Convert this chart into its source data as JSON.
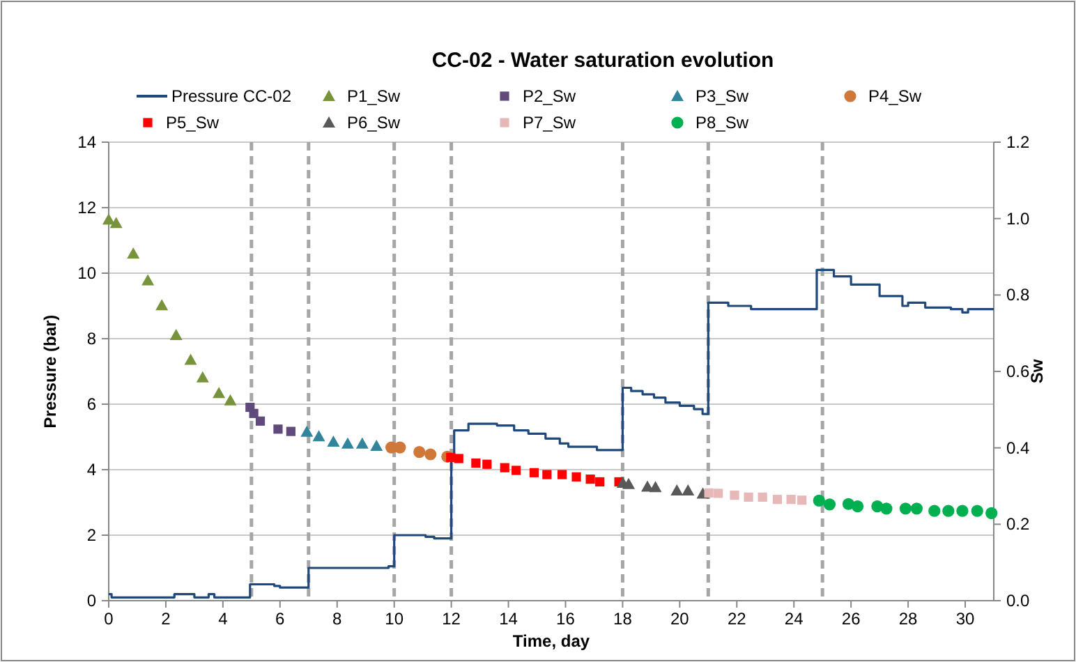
{
  "chart_data": {
    "type": "scatter",
    "title": "CC-02 - Water saturation evolution",
    "xlabel": "Time, day",
    "ylabel": "Pressure (bar)",
    "y2label": "Sw",
    "xlim": [
      0,
      31
    ],
    "xticks": [
      0,
      2,
      4,
      6,
      8,
      10,
      12,
      14,
      16,
      18,
      20,
      22,
      24,
      26,
      28,
      30
    ],
    "ylim": [
      0,
      14
    ],
    "yticks": [
      0,
      2,
      4,
      6,
      8,
      10,
      12,
      14
    ],
    "y2lim": [
      0,
      1.2
    ],
    "y2ticks": [
      {
        "value": 0,
        "label": "0.0"
      },
      {
        "value": 0.2,
        "label": "0.2"
      },
      {
        "value": 0.4,
        "label": "0.4"
      },
      {
        "value": 0.6,
        "label": "0.6"
      },
      {
        "value": 0.8,
        "label": "0.8"
      },
      {
        "value": 1.0,
        "label": "1.0"
      },
      {
        "value": 1.2,
        "label": "1.2"
      }
    ],
    "grid": "y",
    "legend": "top",
    "ref_lines": [
      {
        "axis": "x",
        "value": 5,
        "color": "#a6a6a6",
        "line_style": "dashed"
      },
      {
        "axis": "x",
        "value": 7,
        "color": "#a6a6a6",
        "line_style": "dashed"
      },
      {
        "axis": "x",
        "value": 10,
        "color": "#a6a6a6",
        "line_style": "dashed"
      },
      {
        "axis": "x",
        "value": 12,
        "color": "#a6a6a6",
        "line_style": "dashed"
      },
      {
        "axis": "x",
        "value": 18,
        "color": "#a6a6a6",
        "line_style": "dashed"
      },
      {
        "axis": "x",
        "value": 21,
        "color": "#a6a6a6",
        "line_style": "dashed"
      },
      {
        "axis": "x",
        "value": 25,
        "color": "#a6a6a6",
        "line_style": "dashed"
      }
    ],
    "series": [
      {
        "name": "Pressure CC-02",
        "type": "step",
        "color": "#1f497d",
        "x": [
          0,
          0.1,
          2.3,
          3.0,
          3.5,
          3.7,
          4.95,
          5.8,
          6.0,
          7.0,
          9.8,
          10.0,
          11.1,
          11.4,
          12.0,
          12.1,
          12.6,
          13.6,
          14.2,
          14.7,
          15.3,
          15.8,
          16.1,
          17.1,
          18.0,
          18.3,
          18.7,
          19.1,
          19.5,
          20.0,
          20.5,
          20.8,
          21.0,
          21.7,
          22.5,
          24.8,
          25.4,
          26.0,
          27.0,
          27.8,
          28.0,
          28.6,
          29.5,
          29.9,
          30.1,
          31
        ],
        "values": [
          0.2,
          0.1,
          0.2,
          0.1,
          0.2,
          0.1,
          0.5,
          0.45,
          0.4,
          1.0,
          1.05,
          2.0,
          1.95,
          1.9,
          4.4,
          5.2,
          5.4,
          5.35,
          5.2,
          5.1,
          4.95,
          4.8,
          4.7,
          4.6,
          6.5,
          6.4,
          6.3,
          6.2,
          6.05,
          5.95,
          5.85,
          5.7,
          9.1,
          9.0,
          8.9,
          10.1,
          9.9,
          9.65,
          9.3,
          9.0,
          9.1,
          8.95,
          8.9,
          8.8,
          8.9,
          8.9
        ]
      },
      {
        "name": "P1_Sw",
        "axis": "y2",
        "color": "#77933c",
        "marker": "triangle",
        "x": [
          0,
          0.26,
          0.86,
          1.37,
          1.86,
          2.36,
          2.87,
          3.29,
          3.86,
          4.26
        ],
        "values": [
          0.997,
          0.988,
          0.908,
          0.838,
          0.773,
          0.695,
          0.63,
          0.584,
          0.543,
          0.524
        ]
      },
      {
        "name": "P2_Sw",
        "axis": "y2",
        "color": "#604a7b",
        "marker": "square",
        "x": [
          4.95,
          5.08,
          5.31,
          5.93,
          6.38
        ],
        "values": [
          0.506,
          0.49,
          0.47,
          0.449,
          0.443
        ]
      },
      {
        "name": "P3_Sw",
        "axis": "y2",
        "color": "#31849b",
        "marker": "triangle",
        "x": [
          6.94,
          7.36,
          7.87,
          8.37,
          8.88,
          9.38
        ],
        "values": [
          0.442,
          0.43,
          0.416,
          0.411,
          0.411,
          0.405
        ]
      },
      {
        "name": "P4_Sw",
        "axis": "y2",
        "color": "#d0783a",
        "marker": "circle",
        "x": [
          9.9,
          10.2,
          10.88,
          11.27,
          11.86
        ],
        "values": [
          0.401,
          0.401,
          0.389,
          0.383,
          0.377
        ]
      },
      {
        "name": "P5_Sw",
        "axis": "y2",
        "color": "#ff0000",
        "marker": "square",
        "x": [
          11.98,
          12.26,
          12.86,
          13.25,
          13.87,
          14.27,
          14.9,
          15.35,
          15.88,
          16.38,
          16.87,
          17.2,
          17.87
        ],
        "values": [
          0.375,
          0.372,
          0.36,
          0.357,
          0.348,
          0.341,
          0.335,
          0.33,
          0.33,
          0.324,
          0.318,
          0.311,
          0.311
        ]
      },
      {
        "name": "P6_Sw",
        "axis": "y2",
        "color": "#595959",
        "marker": "triangle",
        "x": [
          18.01,
          18.21,
          18.87,
          19.15,
          19.9,
          20.29,
          20.81
        ],
        "values": [
          0.308,
          0.305,
          0.298,
          0.297,
          0.288,
          0.288,
          0.28
        ]
      },
      {
        "name": "P7_Sw",
        "axis": "y2",
        "color": "#e6b9b8",
        "marker": "square",
        "x": [
          21.02,
          21.35,
          21.92,
          22.41,
          22.9,
          23.42,
          23.9,
          24.28
        ],
        "values": [
          0.282,
          0.281,
          0.276,
          0.271,
          0.271,
          0.265,
          0.265,
          0.263
        ]
      },
      {
        "name": "P8_Sw",
        "axis": "y2",
        "color": "#00b050",
        "marker": "circle",
        "x": [
          24.88,
          25.25,
          25.91,
          26.23,
          26.92,
          27.24,
          27.91,
          28.3,
          28.92,
          29.41,
          29.9,
          30.42,
          30.92
        ],
        "values": [
          0.262,
          0.252,
          0.253,
          0.247,
          0.247,
          0.241,
          0.241,
          0.241,
          0.235,
          0.235,
          0.235,
          0.235,
          0.229
        ]
      }
    ]
  }
}
